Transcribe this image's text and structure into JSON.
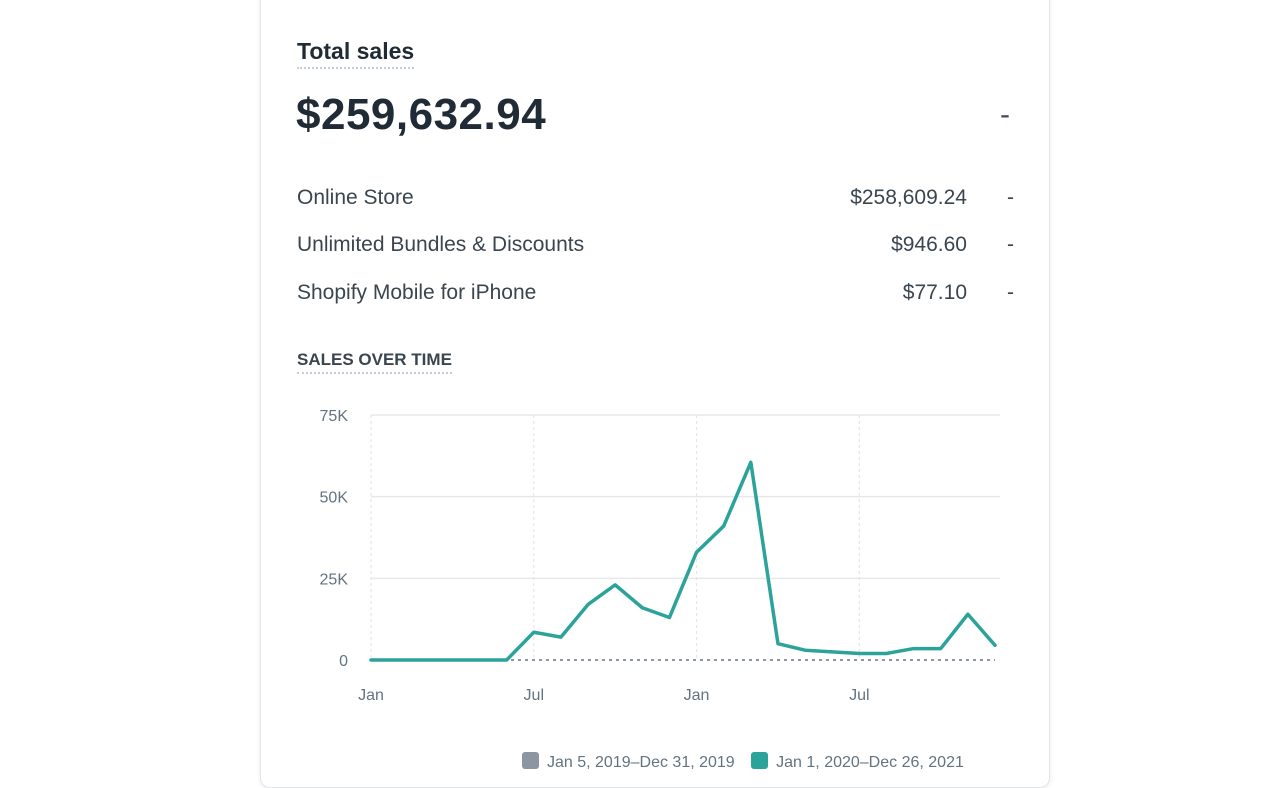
{
  "card": {
    "title": "Total sales",
    "total_value": "$259,632.94",
    "total_change": "-",
    "rows": [
      {
        "label": "Online Store",
        "value": "$258,609.24",
        "change": "-"
      },
      {
        "label": "Unlimited Bundles & Discounts",
        "value": "$946.60",
        "change": "-"
      },
      {
        "label": "Shopify Mobile for iPhone",
        "value": "$77.10",
        "change": "-"
      }
    ],
    "section_title": "SALES OVER TIME"
  },
  "chart_data": {
    "type": "line",
    "title": "",
    "xlabel": "",
    "ylabel": "",
    "ylim": [
      0,
      75000
    ],
    "y_ticks": [
      "0",
      "25K",
      "50K",
      "75K"
    ],
    "y_tick_values": [
      0,
      25000,
      50000,
      75000
    ],
    "x_tick_labels": [
      "Jan",
      "Jul",
      "Jan",
      "Jul"
    ],
    "x_tick_indices": [
      0,
      6,
      12,
      18
    ],
    "grid": true,
    "legend_position": "bottom",
    "series": [
      {
        "name": "Jan 5, 2019–Dec 31, 2019",
        "color": "#8c96a3",
        "values": [
          0,
          0,
          0,
          0,
          0,
          0,
          0,
          0,
          0,
          0,
          0,
          0,
          0,
          0,
          0,
          0,
          0,
          0,
          0,
          0,
          0,
          0,
          0,
          0
        ]
      },
      {
        "name": "Jan 1, 2020–Dec 26, 2021",
        "color": "#2ba39a",
        "values": [
          0,
          0,
          0,
          0,
          0,
          0,
          8500,
          7000,
          17000,
          23000,
          16000,
          13000,
          33000,
          41000,
          60500,
          5000,
          3000,
          2500,
          2000,
          2000,
          3500,
          3500,
          14000,
          4500
        ]
      }
    ]
  }
}
